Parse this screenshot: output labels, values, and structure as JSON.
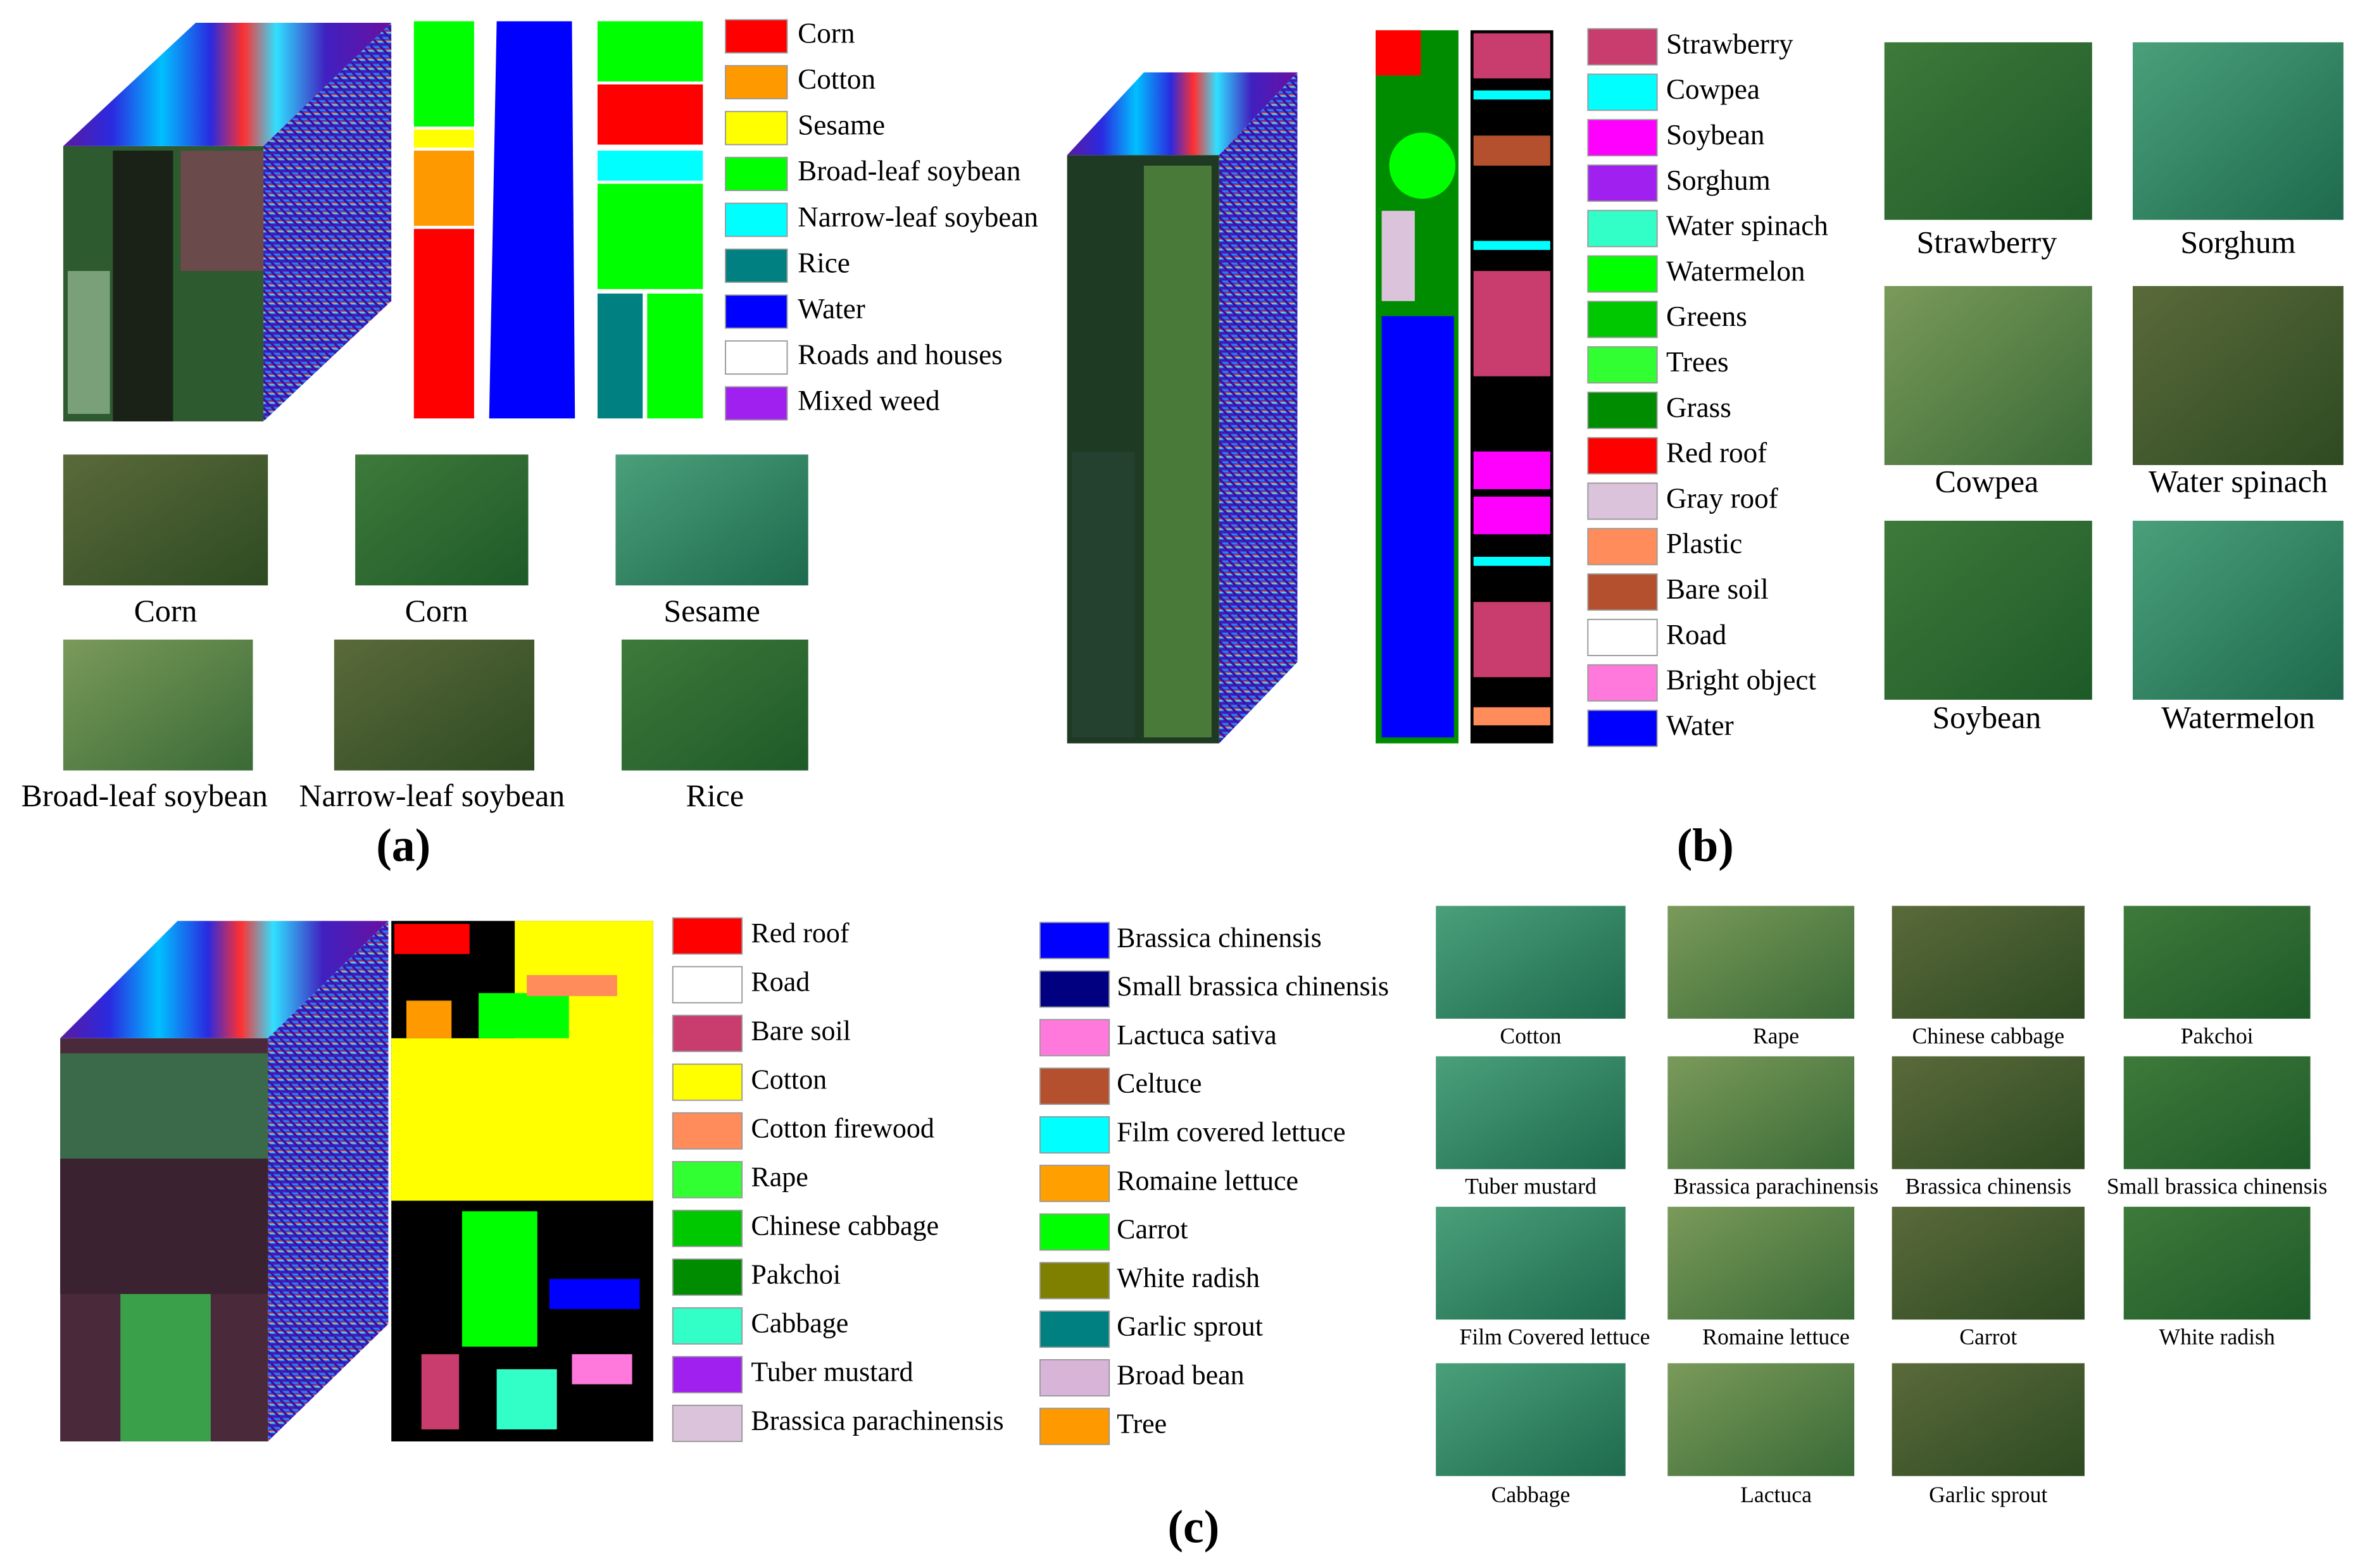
{
  "panels": [
    {
      "label": "(a)",
      "legend_columns": [
        [
          {
            "name": "Corn",
            "color": "#ff0000"
          },
          {
            "name": "Cotton",
            "color": "#ff9900"
          },
          {
            "name": "Sesame",
            "color": "#ffff00"
          },
          {
            "name": "Broad-leaf soybean",
            "color": "#00ff00"
          },
          {
            "name": "Narrow-leaf soybean",
            "color": "#00ffff"
          },
          {
            "name": "Rice",
            "color": "#008080"
          },
          {
            "name": "Water",
            "color": "#0000ff"
          },
          {
            "name": "Roads and houses",
            "color": "#ffffff"
          },
          {
            "name": "Mixed weed",
            "color": "#a020f0"
          }
        ]
      ],
      "photos": [
        "Corn",
        "Corn",
        "Sesame",
        "Broad-leaf soybean",
        "Narrow-leaf soybean",
        "Rice"
      ]
    },
    {
      "label": "(b)",
      "legend_columns": [
        [
          {
            "name": "Strawberry",
            "color": "#c83c6e"
          },
          {
            "name": "Cowpea",
            "color": "#00ffff"
          },
          {
            "name": "Soybean",
            "color": "#ff00ff"
          },
          {
            "name": "Sorghum",
            "color": "#a020f0"
          },
          {
            "name": "Water spinach",
            "color": "#32ffc8"
          },
          {
            "name": "Watermelon",
            "color": "#00ff00"
          },
          {
            "name": "Greens",
            "color": "#00c800"
          },
          {
            "name": "Trees",
            "color": "#32ff32"
          },
          {
            "name": "Grass",
            "color": "#008c00"
          },
          {
            "name": "Red roof",
            "color": "#ff0000"
          },
          {
            "name": "Gray roof",
            "color": "#dcc3dc"
          },
          {
            "name": "Plastic",
            "color": "#ff8c5a"
          },
          {
            "name": "Bare soil",
            "color": "#b4502d"
          },
          {
            "name": "Road",
            "color": "#ffffff"
          },
          {
            "name": "Bright object",
            "color": "#ff78dc"
          },
          {
            "name": "Water",
            "color": "#0000ff"
          }
        ]
      ],
      "photos": [
        "Strawberry",
        "Sorghum",
        "Cowpea",
        "Water spinach",
        "Soybean",
        "Watermelon"
      ]
    },
    {
      "label": "(c)",
      "legend_columns": [
        [
          {
            "name": "Red roof",
            "color": "#ff0000"
          },
          {
            "name": "Road",
            "color": "#ffffff"
          },
          {
            "name": "Bare soil",
            "color": "#c83c6e"
          },
          {
            "name": "Cotton",
            "color": "#ffff00"
          },
          {
            "name": "Cotton firewood",
            "color": "#ff8c5a"
          },
          {
            "name": "Rape",
            "color": "#32ff32"
          },
          {
            "name": "Chinese cabbage",
            "color": "#00c800"
          },
          {
            "name": "Pakchoi",
            "color": "#008c00"
          },
          {
            "name": "Cabbage",
            "color": "#32ffc8"
          },
          {
            "name": "Tuber mustard",
            "color": "#a020f0"
          },
          {
            "name": "Brassica parachinensis",
            "color": "#dcc3dc"
          }
        ],
        [
          {
            "name": "Brassica chinensis",
            "color": "#0000ff"
          },
          {
            "name": "Small brassica chinensis",
            "color": "#000080"
          },
          {
            "name": "Lactuca sativa",
            "color": "#ff78dc"
          },
          {
            "name": "Celtuce",
            "color": "#b4502d"
          },
          {
            "name": "Film covered lettuce",
            "color": "#00ffff"
          },
          {
            "name": "Romaine lettuce",
            "color": "#ffa000"
          },
          {
            "name": "Carrot",
            "color": "#00ff00"
          },
          {
            "name": "White radish",
            "color": "#808000"
          },
          {
            "name": "Garlic sprout",
            "color": "#008080"
          },
          {
            "name": "Broad bean",
            "color": "#d8b4d8"
          },
          {
            "name": "Tree",
            "color": "#ff9900"
          }
        ]
      ],
      "photos": [
        "Cotton",
        "Rape",
        "Chinese cabbage",
        "Pakchoi",
        "Tuber mustard",
        "Brassica parachinensis",
        "Brassica chinensis",
        "Small brassica chinensis",
        "Film Covered lettuce",
        "Romaine lettuce",
        "Carrot",
        "White radish",
        "Cabbage",
        "Lactuca",
        "Garlic sprout"
      ]
    }
  ]
}
